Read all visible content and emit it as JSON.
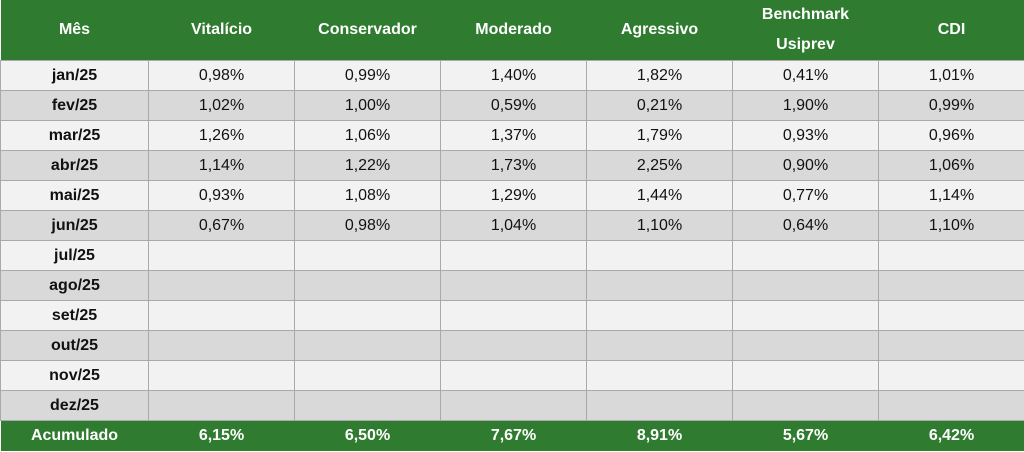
{
  "headers": [
    "Mês",
    "Vitalício",
    "Conservador",
    "Moderado",
    "Agressivo",
    "Benchmark Usiprev",
    "CDI"
  ],
  "header_benchmark_line1": "Benchmark",
  "header_benchmark_line2": "Usiprev",
  "rows": [
    {
      "mes": "jan/25",
      "values": [
        "0,98%",
        "0,99%",
        "1,40%",
        "1,82%",
        "0,41%",
        "1,01%"
      ]
    },
    {
      "mes": "fev/25",
      "values": [
        "1,02%",
        "1,00%",
        "0,59%",
        "0,21%",
        "1,90%",
        "0,99%"
      ]
    },
    {
      "mes": "mar/25",
      "values": [
        "1,26%",
        "1,06%",
        "1,37%",
        "1,79%",
        "0,93%",
        "0,96%"
      ]
    },
    {
      "mes": "abr/25",
      "values": [
        "1,14%",
        "1,22%",
        "1,73%",
        "2,25%",
        "0,90%",
        "1,06%"
      ]
    },
    {
      "mes": "mai/25",
      "values": [
        "0,93%",
        "1,08%",
        "1,29%",
        "1,44%",
        "0,77%",
        "1,14%"
      ]
    },
    {
      "mes": "jun/25",
      "values": [
        "0,67%",
        "0,98%",
        "1,04%",
        "1,10%",
        "0,64%",
        "1,10%"
      ]
    },
    {
      "mes": "jul/25",
      "values": [
        "",
        "",
        "",
        "",
        "",
        ""
      ]
    },
    {
      "mes": "ago/25",
      "values": [
        "",
        "",
        "",
        "",
        "",
        ""
      ]
    },
    {
      "mes": "set/25",
      "values": [
        "",
        "",
        "",
        "",
        "",
        ""
      ]
    },
    {
      "mes": "out/25",
      "values": [
        "",
        "",
        "",
        "",
        "",
        ""
      ]
    },
    {
      "mes": "nov/25",
      "values": [
        "",
        "",
        "",
        "",
        "",
        ""
      ]
    },
    {
      "mes": "dez/25",
      "values": [
        "",
        "",
        "",
        "",
        "",
        ""
      ]
    }
  ],
  "footer": {
    "label": "Acumulado",
    "values": [
      "6,15%",
      "6,50%",
      "7,67%",
      "8,91%",
      "5,67%",
      "6,42%"
    ]
  },
  "colors": {
    "header_bg": "#2f7b2f",
    "row_light": "#f2f2f2",
    "row_dark": "#d9d9d9",
    "grid": "#a9a9a9"
  }
}
